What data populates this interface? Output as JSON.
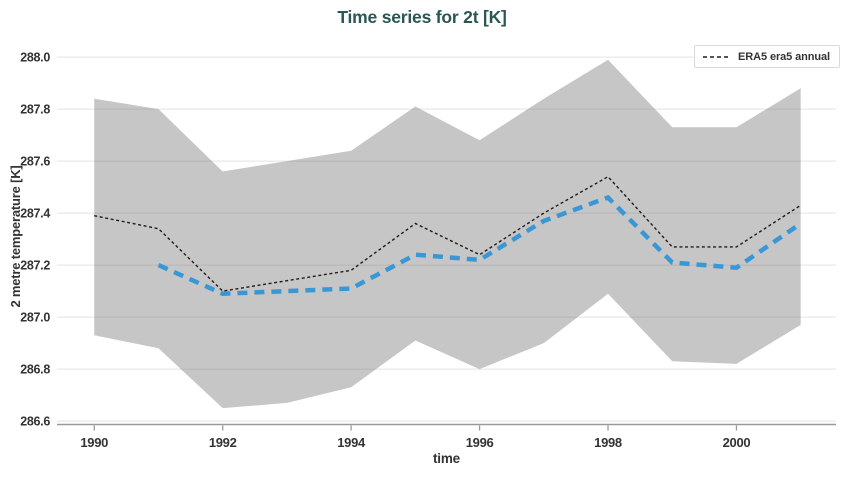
{
  "title": "Time series for 2t [K]",
  "legend": {
    "position": "top-right",
    "entries": [
      {
        "label": "ERA5 era5 annual",
        "sample": "black-dashed-line"
      }
    ]
  },
  "colors": {
    "title_text": "#2b5656",
    "tick_text": "#333333",
    "annual_line": "#1c1c1c",
    "blue_line": "#3a97d5",
    "band_fill": "rgba(128,128,128,0.45)",
    "gridline": "#e8e8e8",
    "axis_line": "#999999"
  },
  "chart_data": {
    "type": "line",
    "title": "Time series for 2t [K]",
    "xlabel": "time",
    "ylabel": "2 metre temperature [K]",
    "x_ticks": [
      "1990",
      "1992",
      "1994",
      "1996",
      "1998",
      "2000"
    ],
    "y_ticks": [
      "286.6",
      "286.8",
      "287.0",
      "287.2",
      "287.4",
      "287.6",
      "287.8",
      "288.0"
    ],
    "x_range": [
      1989.42,
      2001.55
    ],
    "y_range": [
      286.585,
      288.035
    ],
    "grid": "horizontal-only",
    "legend_position": "top-right",
    "years": [
      1990,
      1991,
      1992,
      1993,
      1994,
      1995,
      1996,
      1997,
      1998,
      1999,
      2000,
      2001
    ],
    "band": {
      "x": [
        1990,
        1991,
        1992,
        1993,
        1994,
        1995,
        1996,
        1997,
        1998,
        1999,
        2000,
        2001
      ],
      "upper": [
        287.84,
        287.8,
        287.56,
        287.6,
        287.64,
        287.81,
        287.68,
        287.84,
        287.99,
        287.73,
        287.73,
        287.88
      ],
      "lower": [
        286.93,
        286.88,
        286.65,
        286.67,
        286.73,
        286.91,
        286.8,
        286.9,
        287.09,
        286.83,
        286.82,
        286.97
      ]
    },
    "series": [
      {
        "id": "era5-era5-annual",
        "legend_label": "ERA5 era5 annual",
        "line_style": "thin-black-dashed",
        "x": [
          1990,
          1991,
          1992,
          1993,
          1994,
          1995,
          1996,
          1997,
          1998,
          1999,
          2000,
          2001
        ],
        "values": [
          287.39,
          287.34,
          287.1,
          287.14,
          287.18,
          287.36,
          287.24,
          287.4,
          287.54,
          287.27,
          287.27,
          287.43
        ]
      },
      {
        "id": "thick-blue-dashed",
        "legend_label": null,
        "line_style": "thick-blue-dashed",
        "x": [
          1991,
          1992,
          1993,
          1994,
          1995,
          1996,
          1997,
          1998,
          1999,
          2000,
          2001
        ],
        "values": [
          287.2,
          287.09,
          287.1,
          287.11,
          287.24,
          287.22,
          287.37,
          287.46,
          287.21,
          287.19,
          287.36
        ]
      }
    ]
  }
}
